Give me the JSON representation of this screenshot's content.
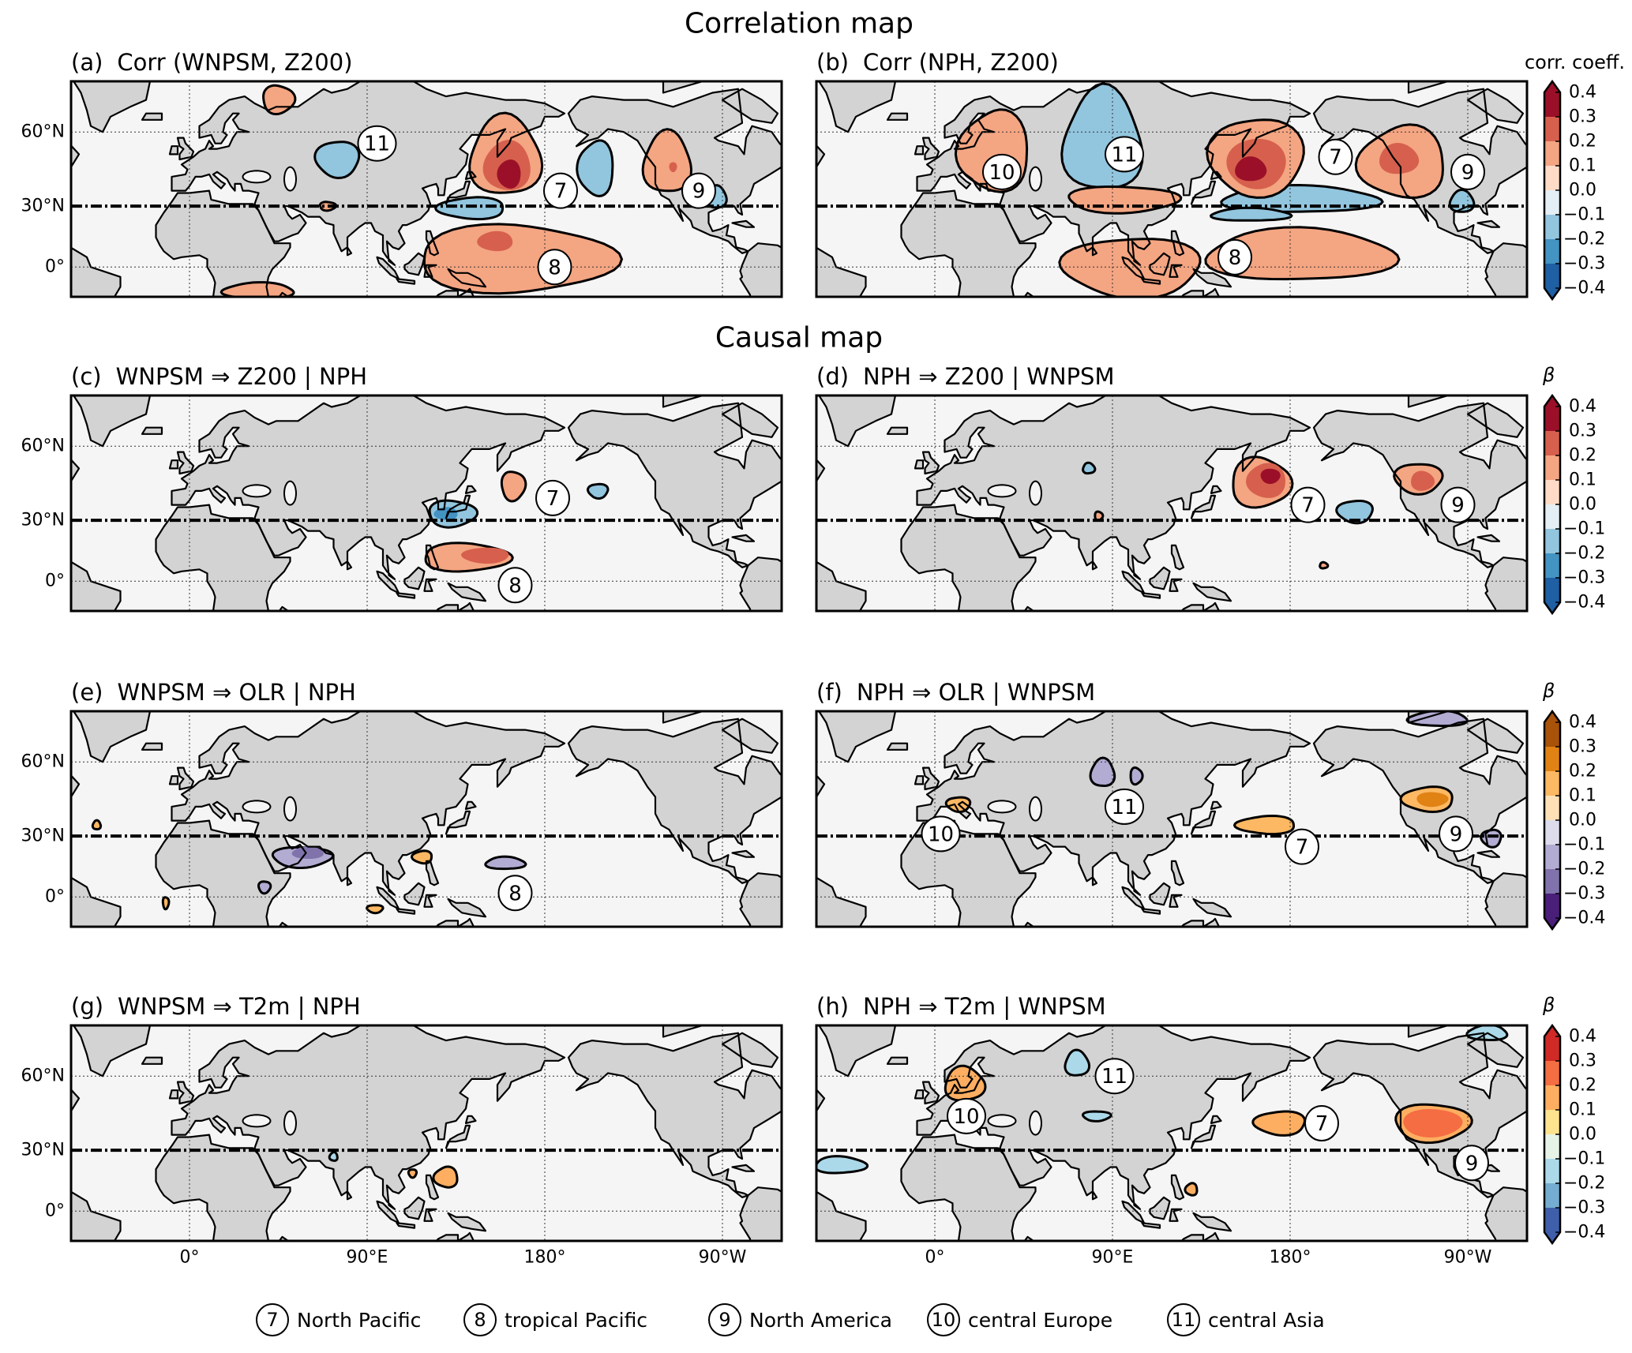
{
  "sections": {
    "correlation": "Correlation map",
    "causal": "Causal map"
  },
  "map_extent": {
    "lon": [
      -60,
      300
    ],
    "lat": [
      -15,
      75
    ],
    "projection": "Miller"
  },
  "lat_labels": [
    "60°N",
    "30°N",
    "0°"
  ],
  "lon_labels": [
    "0°",
    "90°E",
    "180°",
    "90°W"
  ],
  "colormaps": {
    "RdBu_r": [
      "#9b1028",
      "#d6604d",
      "#f4a582",
      "#fddbc7",
      "#e4eef5",
      "#92c5de",
      "#4393c3",
      "#1f5fa3"
    ],
    "PuOr_r": [
      "#a8520a",
      "#e08214",
      "#fdb863",
      "#fee0b6",
      "#dcdcec",
      "#b2abd2",
      "#8073ac",
      "#4a1f7a"
    ],
    "RdYlBu_r": [
      "#cf2a26",
      "#f46d43",
      "#fdae61",
      "#fee38f",
      "#e6f4e8",
      "#abd9e9",
      "#74add1",
      "#3f5fab"
    ]
  },
  "colorbars": [
    {
      "title": "corr. coeff.",
      "colormap": "RdBu_r",
      "ticks": [
        "0.4",
        "0.3",
        "0.2",
        "0.1",
        "0.0",
        "−0.1",
        "−0.2",
        "−0.3",
        "−0.4"
      ]
    },
    {
      "title": "β",
      "colormap": "RdBu_r",
      "ticks": [
        "0.4",
        "0.3",
        "0.2",
        "0.1",
        "0.0",
        "−0.1",
        "−0.2",
        "−0.3",
        "−0.4"
      ]
    },
    {
      "title": "β",
      "colormap": "PuOr_r",
      "ticks": [
        "0.4",
        "0.3",
        "0.2",
        "0.1",
        "0.0",
        "−0.1",
        "−0.2",
        "−0.3",
        "−0.4"
      ]
    },
    {
      "title": "β",
      "colormap": "RdYlBu_r",
      "ticks": [
        "0.4",
        "0.3",
        "0.2",
        "0.1",
        "0.0",
        "−0.1",
        "−0.2",
        "−0.3",
        "−0.4"
      ]
    }
  ],
  "panels": [
    {
      "label": "(a)",
      "title": "Corr (WNPSM, Z200)",
      "colormap": "RdBu_r",
      "regions": [
        {
          "lon": 160,
          "lat": 50,
          "rlon": 18,
          "rlat": 15,
          "level": 0.1
        },
        {
          "lon": 161,
          "lat": 47,
          "rlon": 12,
          "rlat": 10,
          "level": 0.2
        },
        {
          "lon": 162,
          "lat": 44,
          "rlon": 6,
          "rlat": 6,
          "level": 0.3
        },
        {
          "lon": 75,
          "lat": 50,
          "rlon": 11,
          "rlat": 7,
          "level": -0.1
        },
        {
          "lon": 206,
          "lat": 46,
          "rlon": 9,
          "rlat": 11,
          "level": -0.1
        },
        {
          "lon": 242,
          "lat": 48,
          "rlon": 12,
          "rlat": 12,
          "level": 0.1
        },
        {
          "lon": 245,
          "lat": 47,
          "rlon": 2,
          "rlat": 2,
          "level": 0.2
        },
        {
          "lon": 267,
          "lat": 34,
          "rlon": 5,
          "rlat": 5,
          "level": -0.1
        },
        {
          "lon": 143,
          "lat": 29,
          "rlon": 17,
          "rlat": 5,
          "level": -0.1
        },
        {
          "lon": 165,
          "lat": 4,
          "rlon": 50,
          "rlat": 17,
          "level": 0.1
        },
        {
          "lon": 155,
          "lat": 13,
          "rlon": 9,
          "rlat": 5,
          "level": 0.2
        },
        {
          "lon": 45,
          "lat": 70,
          "rlon": 8,
          "rlat": 4,
          "level": 0.1
        },
        {
          "lon": 70,
          "lat": 30,
          "rlon": 4,
          "rlat": 2,
          "level": 0.1
        },
        {
          "lon": 35,
          "lat": -12,
          "rlon": 18,
          "rlat": 4,
          "level": 0.1
        }
      ],
      "markers": [
        {
          "n": "11",
          "lon": 95,
          "lat": 56
        },
        {
          "n": "7",
          "lon": 188,
          "lat": 37
        },
        {
          "n": "9",
          "lon": 258,
          "lat": 37
        },
        {
          "n": "8",
          "lon": 185,
          "lat": 0
        }
      ]
    },
    {
      "label": "(b)",
      "title": "Corr (NPH, Z200)",
      "colormap": "RdBu_r",
      "regions": [
        {
          "lon": 30,
          "lat": 52,
          "rlon": 18,
          "rlat": 15,
          "level": 0.1
        },
        {
          "lon": 85,
          "lat": 55,
          "rlon": 20,
          "rlat": 18,
          "level": -0.1
        },
        {
          "lon": 95,
          "lat": 33,
          "rlon": 28,
          "rlat": 6,
          "level": 0.1
        },
        {
          "lon": 185,
          "lat": 33,
          "rlon": 40,
          "rlat": 6,
          "level": -0.1
        },
        {
          "lon": 160,
          "lat": 26,
          "rlon": 20,
          "rlat": 3,
          "level": -0.1
        },
        {
          "lon": 163,
          "lat": 50,
          "rlon": 24,
          "rlat": 15,
          "level": 0.1
        },
        {
          "lon": 163,
          "lat": 48,
          "rlon": 15,
          "rlat": 10,
          "level": 0.2
        },
        {
          "lon": 160,
          "lat": 46,
          "rlon": 8,
          "rlat": 5,
          "level": 0.3
        },
        {
          "lon": 237,
          "lat": 48,
          "rlon": 22,
          "rlat": 14,
          "level": 0.1
        },
        {
          "lon": 235,
          "lat": 50,
          "rlon": 10,
          "rlat": 6,
          "level": 0.2
        },
        {
          "lon": 267,
          "lat": 32,
          "rlon": 6,
          "rlat": 5,
          "level": -0.1
        },
        {
          "lon": 100,
          "lat": 0,
          "rlon": 35,
          "rlat": 15,
          "level": 0.1
        },
        {
          "lon": 185,
          "lat": 6,
          "rlon": 48,
          "rlat": 13,
          "level": 0.1
        }
      ],
      "markers": [
        {
          "n": "10",
          "lon": 34,
          "lat": 45
        },
        {
          "n": "11",
          "lon": 96,
          "lat": 52
        },
        {
          "n": "7",
          "lon": 203,
          "lat": 51
        },
        {
          "n": "9",
          "lon": 270,
          "lat": 45
        },
        {
          "n": "8",
          "lon": 152,
          "lat": 5
        }
      ]
    },
    {
      "label": "(c)",
      "title": "WNPSM ⇒ Z200 | NPH",
      "colormap": "RdBu_r",
      "regions": [
        {
          "lon": 164,
          "lat": 45,
          "rlon": 6,
          "rlat": 6,
          "level": 0.1
        },
        {
          "lon": 207,
          "lat": 43,
          "rlon": 5,
          "rlat": 3,
          "level": -0.1
        },
        {
          "lon": 133,
          "lat": 33,
          "rlon": 12,
          "rlat": 6,
          "level": -0.1
        },
        {
          "lon": 130,
          "lat": 33,
          "rlon": 6,
          "rlat": 3,
          "level": -0.2
        },
        {
          "lon": 140,
          "lat": 12,
          "rlon": 22,
          "rlat": 7,
          "level": 0.1
        },
        {
          "lon": 150,
          "lat": 13,
          "rlon": 12,
          "rlat": 4,
          "level": 0.2
        }
      ],
      "markers": [
        {
          "n": "7",
          "lon": 184,
          "lat": 40
        },
        {
          "n": "8",
          "lon": 165,
          "lat": -2
        }
      ]
    },
    {
      "label": "(d)",
      "title": "NPH ⇒ Z200 | WNPSM",
      "colormap": "RdBu_r",
      "regions": [
        {
          "lon": 165,
          "lat": 46,
          "rlon": 15,
          "rlat": 10,
          "level": 0.1
        },
        {
          "lon": 168,
          "lat": 47,
          "rlon": 10,
          "rlat": 7,
          "level": 0.2
        },
        {
          "lon": 170,
          "lat": 49,
          "rlon": 5,
          "rlat": 3,
          "level": 0.3
        },
        {
          "lon": 213,
          "lat": 34,
          "rlon": 9,
          "rlat": 5,
          "level": -0.1
        },
        {
          "lon": 245,
          "lat": 48,
          "rlon": 12,
          "rlat": 6,
          "level": 0.1
        },
        {
          "lon": 247,
          "lat": 47,
          "rlon": 6,
          "rlat": 4,
          "level": 0.2
        },
        {
          "lon": 78,
          "lat": 52,
          "rlon": 3,
          "rlat": 2,
          "level": -0.1
        },
        {
          "lon": 83,
          "lat": 32,
          "rlon": 2,
          "rlat": 2,
          "level": 0.1
        },
        {
          "lon": 197,
          "lat": 8,
          "rlon": 2,
          "rlat": 1.5,
          "level": 0.1
        }
      ],
      "markers": [
        {
          "n": "7",
          "lon": 189,
          "lat": 37
        },
        {
          "n": "9",
          "lon": 265,
          "lat": 37
        }
      ]
    },
    {
      "label": "(e)",
      "title": "WNPSM ⇒ OLR | NPH",
      "colormap": "PuOr_r",
      "regions": [
        {
          "lon": 57,
          "lat": 20,
          "rlon": 15,
          "rlat": 5,
          "level": -0.1
        },
        {
          "lon": 60,
          "lat": 22,
          "rlon": 8,
          "rlat": 3,
          "level": -0.2
        },
        {
          "lon": 160,
          "lat": 17,
          "rlon": 10,
          "rlat": 3,
          "level": -0.1
        },
        {
          "lon": 38,
          "lat": 5,
          "rlon": 3,
          "rlat": 3,
          "level": -0.1
        },
        {
          "lon": 118,
          "lat": 20,
          "rlon": 5,
          "rlat": 3,
          "level": 0.1
        },
        {
          "lon": 94,
          "lat": -6,
          "rlon": 4,
          "rlat": 2,
          "level": 0.1
        },
        {
          "lon": -47,
          "lat": 35,
          "rlon": 2,
          "rlat": 2,
          "level": 0.1
        },
        {
          "lon": -12,
          "lat": -3,
          "rlon": 1.5,
          "rlat": 3,
          "level": 0.1
        }
      ],
      "markers": [
        {
          "n": "8",
          "lon": 165,
          "lat": 2
        }
      ]
    },
    {
      "label": "(f)",
      "title": "NPH ⇒ OLR | WNPSM",
      "colormap": "PuOr_r",
      "regions": [
        {
          "lon": 12,
          "lat": 44,
          "rlon": 6,
          "rlat": 3,
          "level": 0.1
        },
        {
          "lon": 85,
          "lat": 56,
          "rlon": 6,
          "rlat": 5,
          "level": -0.1
        },
        {
          "lon": 102,
          "lat": 55,
          "rlon": 3,
          "rlat": 3,
          "level": -0.1
        },
        {
          "lon": 168,
          "lat": 35,
          "rlon": 15,
          "rlat": 4,
          "level": 0.1
        },
        {
          "lon": 250,
          "lat": 46,
          "rlon": 13,
          "rlat": 5,
          "level": 0.1
        },
        {
          "lon": 252,
          "lat": 46,
          "rlon": 8,
          "rlat": 3,
          "level": 0.2
        },
        {
          "lon": 282,
          "lat": 29,
          "rlon": 5,
          "rlat": 4,
          "level": -0.1
        },
        {
          "lon": 255,
          "lat": 73,
          "rlon": 15,
          "rlat": 2,
          "level": -0.1
        }
      ],
      "markers": [
        {
          "n": "10",
          "lon": 3,
          "lat": 31
        },
        {
          "n": "11",
          "lon": 96,
          "lat": 43
        },
        {
          "n": "7",
          "lon": 186,
          "lat": 25
        },
        {
          "n": "9",
          "lon": 264,
          "lat": 31
        }
      ]
    },
    {
      "label": "(g)",
      "title": "WNPSM ⇒ T2m | NPH",
      "colormap": "RdYlBu_r",
      "regions": [
        {
          "lon": 130,
          "lat": 17,
          "rlon": 6,
          "rlat": 5,
          "level": 0.1
        },
        {
          "lon": 73,
          "lat": 27,
          "rlon": 2,
          "rlat": 2,
          "level": -0.1
        },
        {
          "lon": 113,
          "lat": 19,
          "rlon": 2,
          "rlat": 2,
          "level": 0.1
        }
      ],
      "markers": []
    },
    {
      "label": "(h)",
      "title": "NPH ⇒ T2m | WNPSM",
      "colormap": "RdYlBu_r",
      "regions": [
        {
          "lon": 15,
          "lat": 57,
          "rlon": 10,
          "rlat": 6,
          "level": 0.1
        },
        {
          "lon": 72,
          "lat": 64,
          "rlon": 6,
          "rlat": 4,
          "level": -0.1
        },
        {
          "lon": 82,
          "lat": 45,
          "rlon": 7,
          "rlat": 2,
          "level": -0.1
        },
        {
          "lon": 175,
          "lat": 42,
          "rlon": 13,
          "rlat": 5,
          "level": 0.1
        },
        {
          "lon": 252,
          "lat": 42,
          "rlon": 19,
          "rlat": 8,
          "level": 0.1
        },
        {
          "lon": 252,
          "lat": 42,
          "rlon": 15,
          "rlat": 6,
          "level": 0.2
        },
        {
          "lon": -48,
          "lat": 23,
          "rlon": 13,
          "rlat": 4,
          "level": -0.1
        },
        {
          "lon": 280,
          "lat": 73,
          "rlon": 10,
          "rlat": 2,
          "level": -0.1
        },
        {
          "lon": 130,
          "lat": 11,
          "rlon": 3,
          "rlat": 3,
          "level": 0.1
        }
      ],
      "markers": [
        {
          "n": "11",
          "lon": 91,
          "lat": 60
        },
        {
          "n": "10",
          "lon": 16,
          "lat": 45
        },
        {
          "n": "7",
          "lon": 196,
          "lat": 42
        },
        {
          "n": "9",
          "lon": 272,
          "lat": 24
        }
      ]
    }
  ],
  "legend": [
    {
      "n": "7",
      "text": "North Pacific"
    },
    {
      "n": "8",
      "text": "tropical Pacific"
    },
    {
      "n": "9",
      "text": "North America"
    },
    {
      "n": "10",
      "text": "central Europe"
    },
    {
      "n": "11",
      "text": "central Asia"
    }
  ],
  "colors": {
    "land": "#d3d3d3",
    "ocean": "#f5f5f5",
    "coast": "#000000"
  }
}
